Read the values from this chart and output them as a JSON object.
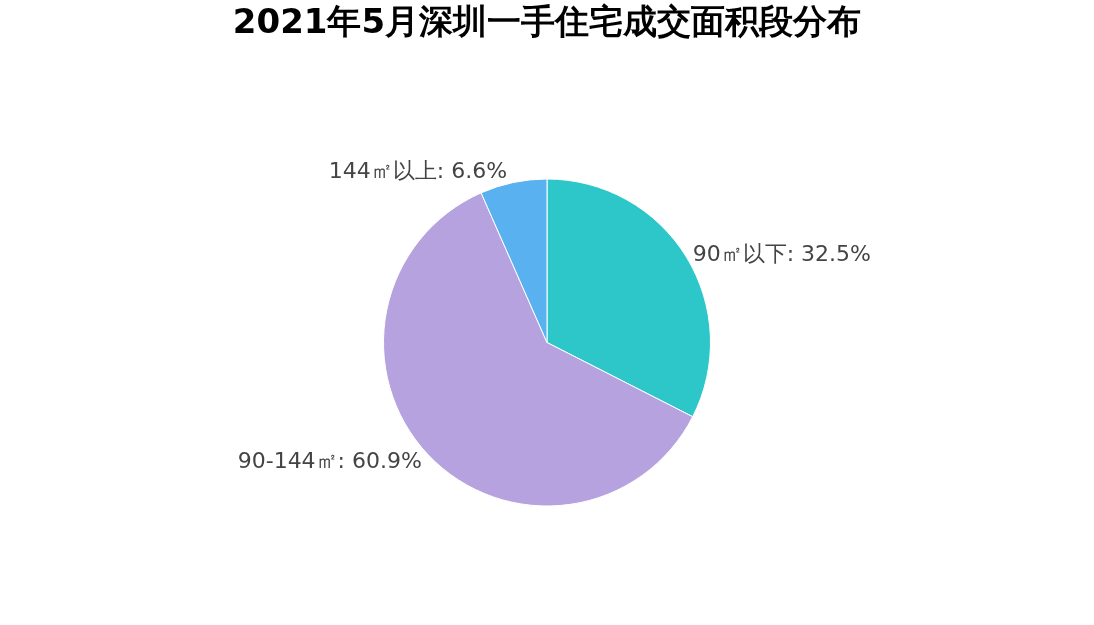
{
  "chart_data": {
    "type": "pie",
    "title": "2021年5月深圳一手住宅成交面积段分布",
    "categories": [
      "90㎡以下",
      "90-144㎡",
      "144㎡以上"
    ],
    "values": [
      32.5,
      60.9,
      6.6
    ],
    "value_labels": [
      "32.5%",
      "60.9%",
      "6.6%"
    ],
    "colors": [
      "#2ec7c9",
      "#b6a2de",
      "#5ab1ef"
    ]
  }
}
